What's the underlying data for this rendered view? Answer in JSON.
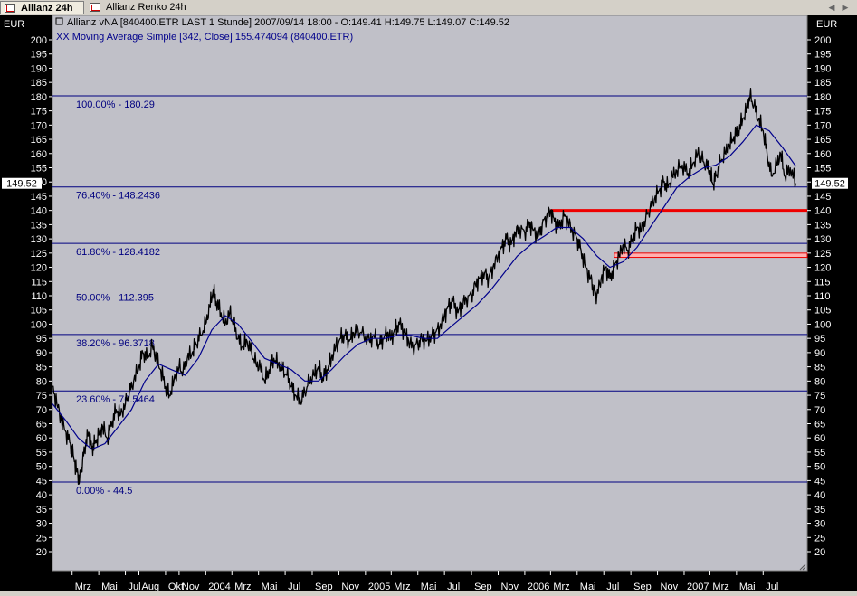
{
  "tabs": [
    {
      "label": "Allianz 24h",
      "active": true
    },
    {
      "label": "Allianz Renko 24h",
      "active": false
    }
  ],
  "icons": {
    "tab": "chart-icon",
    "scroll_left": "arrow-left-icon",
    "scroll_right": "arrow-right-icon"
  },
  "header": {
    "line1": "Allianz vNA [840400.ETR LAST 1 Stunde] 2007/09/14 18:00 - O:149.41 H:149.75 L:149.07 C:149.52",
    "line2": "XX Moving Average Simple [342, Close] 155.474094 (840400.ETR)"
  },
  "currency_left": "EUR",
  "currency_right": "EUR",
  "last_price_label": "149.52",
  "colors": {
    "plot_bg": "#c0c0c8",
    "price": "#000000",
    "moving_average": "#00008b",
    "fib_lines": "#000080",
    "resistance": "#ee0000",
    "support_zone": "#ffb0b0"
  },
  "chart_data": {
    "type": "line",
    "ylim": [
      20,
      200
    ],
    "y_ticks": [
      20,
      25,
      30,
      35,
      40,
      45,
      50,
      55,
      60,
      65,
      70,
      75,
      80,
      85,
      90,
      95,
      100,
      105,
      110,
      115,
      120,
      125,
      130,
      135,
      140,
      145,
      150,
      155,
      160,
      165,
      170,
      175,
      180,
      185,
      190,
      195,
      200
    ],
    "x_tick_labels": [
      {
        "label": "Mrz",
        "date": "2003-03-01"
      },
      {
        "label": "Mai",
        "date": "2003-05-01"
      },
      {
        "label": "Jul",
        "date": "2003-07-01"
      },
      {
        "label": "Aug",
        "date": "2003-08-01"
      },
      {
        "label": "Okt",
        "date": "2003-10-01"
      },
      {
        "label": "Nov",
        "date": "2003-11-01"
      },
      {
        "label": "2004",
        "date": "2004-01-01"
      },
      {
        "label": "Mrz",
        "date": "2004-03-01"
      },
      {
        "label": "Mai",
        "date": "2004-05-01"
      },
      {
        "label": "Jul",
        "date": "2004-07-01"
      },
      {
        "label": "Sep",
        "date": "2004-09-01"
      },
      {
        "label": "Nov",
        "date": "2004-11-01"
      },
      {
        "label": "2005",
        "date": "2005-01-01"
      },
      {
        "label": "Mrz",
        "date": "2005-03-01"
      },
      {
        "label": "Mai",
        "date": "2005-05-01"
      },
      {
        "label": "Jul",
        "date": "2005-07-01"
      },
      {
        "label": "Sep",
        "date": "2005-09-01"
      },
      {
        "label": "Nov",
        "date": "2005-11-01"
      },
      {
        "label": "2006",
        "date": "2006-01-01"
      },
      {
        "label": "Mrz",
        "date": "2006-03-01"
      },
      {
        "label": "Mai",
        "date": "2006-05-01"
      },
      {
        "label": "Jul",
        "date": "2006-07-01"
      },
      {
        "label": "Sep",
        "date": "2006-09-01"
      },
      {
        "label": "Nov",
        "date": "2006-11-01"
      },
      {
        "label": "2007",
        "date": "2007-01-01"
      },
      {
        "label": "Mrz",
        "date": "2007-03-01"
      },
      {
        "label": "Mai",
        "date": "2007-05-01"
      },
      {
        "label": "Jul",
        "date": "2007-07-01"
      }
    ],
    "x_range": [
      "2003-01-15",
      "2007-10-10"
    ],
    "fib_levels": [
      {
        "label": "100.00% - 180.29",
        "value": 180.29
      },
      {
        "label": "76.40% - 148.2436",
        "value": 148.2436
      },
      {
        "label": "61.80% - 128.4182",
        "value": 128.4182
      },
      {
        "label": "50.00% - 112.395",
        "value": 112.395
      },
      {
        "label": "38.20% - 96.3718",
        "value": 96.3718
      },
      {
        "label": "23.60% - 76.5464",
        "value": 76.5464
      },
      {
        "label": "0.00% - 44.5",
        "value": 44.5
      }
    ],
    "resistance_line": {
      "value": 140,
      "from": "2006-03-01"
    },
    "support_zone": {
      "low": 123.5,
      "high": 125,
      "from": "2006-07-25"
    },
    "series": [
      {
        "name": "Allianz vNA",
        "points": [
          [
            "2003-01-15",
            78
          ],
          [
            "2003-01-25",
            72
          ],
          [
            "2003-02-05",
            66
          ],
          [
            "2003-02-15",
            62
          ],
          [
            "2003-02-25",
            58
          ],
          [
            "2003-03-05",
            53
          ],
          [
            "2003-03-12",
            48
          ],
          [
            "2003-03-18",
            45
          ],
          [
            "2003-03-25",
            52
          ],
          [
            "2003-04-01",
            58
          ],
          [
            "2003-04-08",
            62
          ],
          [
            "2003-04-15",
            56
          ],
          [
            "2003-04-22",
            58
          ],
          [
            "2003-05-01",
            61
          ],
          [
            "2003-05-10",
            64
          ],
          [
            "2003-05-20",
            60
          ],
          [
            "2003-06-01",
            66
          ],
          [
            "2003-06-10",
            70
          ],
          [
            "2003-06-20",
            68
          ],
          [
            "2003-07-01",
            72
          ],
          [
            "2003-07-10",
            76
          ],
          [
            "2003-07-20",
            80
          ],
          [
            "2003-08-01",
            85
          ],
          [
            "2003-08-10",
            90
          ],
          [
            "2003-08-20",
            88
          ],
          [
            "2003-09-01",
            92
          ],
          [
            "2003-09-10",
            88
          ],
          [
            "2003-09-20",
            84
          ],
          [
            "2003-10-01",
            78
          ],
          [
            "2003-10-10",
            75
          ],
          [
            "2003-10-20",
            80
          ],
          [
            "2003-11-01",
            85
          ],
          [
            "2003-11-10",
            83
          ],
          [
            "2003-11-20",
            88
          ],
          [
            "2003-12-01",
            90
          ],
          [
            "2003-12-10",
            93
          ],
          [
            "2003-12-20",
            96
          ],
          [
            "2004-01-01",
            100
          ],
          [
            "2004-01-10",
            106
          ],
          [
            "2004-01-18",
            112
          ],
          [
            "2004-01-25",
            108
          ],
          [
            "2004-02-05",
            104
          ],
          [
            "2004-02-15",
            100
          ],
          [
            "2004-02-25",
            104
          ],
          [
            "2004-03-05",
            100
          ],
          [
            "2004-03-15",
            95
          ],
          [
            "2004-03-25",
            92
          ],
          [
            "2004-04-05",
            94
          ],
          [
            "2004-04-15",
            90
          ],
          [
            "2004-04-25",
            86
          ],
          [
            "2004-05-05",
            85
          ],
          [
            "2004-05-15",
            80
          ],
          [
            "2004-05-25",
            84
          ],
          [
            "2004-06-05",
            88
          ],
          [
            "2004-06-15",
            86
          ],
          [
            "2004-06-25",
            84
          ],
          [
            "2004-07-05",
            82
          ],
          [
            "2004-07-15",
            78
          ],
          [
            "2004-07-25",
            75
          ],
          [
            "2004-08-05",
            73
          ],
          [
            "2004-08-15",
            76
          ],
          [
            "2004-08-25",
            80
          ],
          [
            "2004-09-05",
            82
          ],
          [
            "2004-09-15",
            85
          ],
          [
            "2004-09-25",
            81
          ],
          [
            "2004-10-05",
            84
          ],
          [
            "2004-10-15",
            88
          ],
          [
            "2004-10-25",
            92
          ],
          [
            "2004-11-05",
            95
          ],
          [
            "2004-11-15",
            96
          ],
          [
            "2004-11-25",
            94
          ],
          [
            "2004-12-05",
            97
          ],
          [
            "2004-12-15",
            98
          ],
          [
            "2004-12-28",
            96
          ],
          [
            "2005-01-10",
            94
          ],
          [
            "2005-01-20",
            96
          ],
          [
            "2005-02-01",
            93
          ],
          [
            "2005-02-10",
            95
          ],
          [
            "2005-02-20",
            97
          ],
          [
            "2005-03-01",
            95
          ],
          [
            "2005-03-10",
            98
          ],
          [
            "2005-03-20",
            100
          ],
          [
            "2005-04-01",
            97
          ],
          [
            "2005-04-10",
            94
          ],
          [
            "2005-04-20",
            92
          ],
          [
            "2005-05-01",
            93
          ],
          [
            "2005-05-10",
            95
          ],
          [
            "2005-05-20",
            94
          ],
          [
            "2005-06-01",
            96
          ],
          [
            "2005-06-10",
            97
          ],
          [
            "2005-06-20",
            99
          ],
          [
            "2005-07-01",
            103
          ],
          [
            "2005-07-10",
            106
          ],
          [
            "2005-07-20",
            108
          ],
          [
            "2005-08-01",
            104
          ],
          [
            "2005-08-10",
            107
          ],
          [
            "2005-08-20",
            109
          ],
          [
            "2005-09-01",
            110
          ],
          [
            "2005-09-10",
            114
          ],
          [
            "2005-09-20",
            116
          ],
          [
            "2005-10-01",
            118
          ],
          [
            "2005-10-10",
            116
          ],
          [
            "2005-10-20",
            120
          ],
          [
            "2005-11-01",
            124
          ],
          [
            "2005-11-10",
            127
          ],
          [
            "2005-11-20",
            130
          ],
          [
            "2005-12-01",
            128
          ],
          [
            "2005-12-10",
            132
          ],
          [
            "2005-12-20",
            134
          ],
          [
            "2006-01-01",
            132
          ],
          [
            "2006-01-10",
            136
          ],
          [
            "2006-01-20",
            133
          ],
          [
            "2006-02-01",
            131
          ],
          [
            "2006-02-10",
            135
          ],
          [
            "2006-02-20",
            138
          ],
          [
            "2006-03-01",
            140
          ],
          [
            "2006-03-10",
            136
          ],
          [
            "2006-03-20",
            134
          ],
          [
            "2006-04-01",
            138
          ],
          [
            "2006-04-10",
            136
          ],
          [
            "2006-04-20",
            133
          ],
          [
            "2006-05-01",
            130
          ],
          [
            "2006-05-10",
            126
          ],
          [
            "2006-05-20",
            120
          ],
          [
            "2006-06-01",
            116
          ],
          [
            "2006-06-08",
            112
          ],
          [
            "2006-06-15",
            110
          ],
          [
            "2006-06-25",
            116
          ],
          [
            "2006-07-05",
            120
          ],
          [
            "2006-07-15",
            116
          ],
          [
            "2006-07-25",
            120
          ],
          [
            "2006-08-05",
            124
          ],
          [
            "2006-08-15",
            128
          ],
          [
            "2006-08-25",
            126
          ],
          [
            "2006-09-05",
            130
          ],
          [
            "2006-09-15",
            134
          ],
          [
            "2006-09-25",
            133
          ],
          [
            "2006-10-05",
            137
          ],
          [
            "2006-10-15",
            141
          ],
          [
            "2006-10-25",
            144
          ],
          [
            "2006-11-05",
            147
          ],
          [
            "2006-11-15",
            150
          ],
          [
            "2006-11-25",
            148
          ],
          [
            "2006-12-05",
            152
          ],
          [
            "2006-12-15",
            154
          ],
          [
            "2006-12-28",
            156
          ],
          [
            "2007-01-10",
            153
          ],
          [
            "2007-01-20",
            156
          ],
          [
            "2007-02-01",
            160
          ],
          [
            "2007-02-10",
            158
          ],
          [
            "2007-02-20",
            156
          ],
          [
            "2007-03-01",
            154
          ],
          [
            "2007-03-08",
            149
          ],
          [
            "2007-03-15",
            152
          ],
          [
            "2007-03-25",
            157
          ],
          [
            "2007-04-05",
            160
          ],
          [
            "2007-04-15",
            163
          ],
          [
            "2007-04-25",
            166
          ],
          [
            "2007-05-05",
            168
          ],
          [
            "2007-05-15",
            172
          ],
          [
            "2007-05-25",
            176
          ],
          [
            "2007-06-01",
            180
          ],
          [
            "2007-06-10",
            177
          ],
          [
            "2007-06-20",
            172
          ],
          [
            "2007-07-01",
            168
          ],
          [
            "2007-07-10",
            160
          ],
          [
            "2007-07-20",
            152
          ],
          [
            "2007-08-01",
            156
          ],
          [
            "2007-08-10",
            160
          ],
          [
            "2007-08-20",
            152
          ],
          [
            "2007-09-01",
            155
          ],
          [
            "2007-09-14",
            149.52
          ]
        ]
      },
      {
        "name": "Moving Average Simple [342, Close]",
        "points": [
          [
            "2003-01-15",
            72
          ],
          [
            "2003-02-15",
            66
          ],
          [
            "2003-03-15",
            60
          ],
          [
            "2003-04-15",
            56
          ],
          [
            "2003-05-15",
            58
          ],
          [
            "2003-06-15",
            64
          ],
          [
            "2003-07-15",
            70
          ],
          [
            "2003-08-15",
            80
          ],
          [
            "2003-09-15",
            86
          ],
          [
            "2003-10-15",
            84
          ],
          [
            "2003-11-15",
            82
          ],
          [
            "2003-12-15",
            88
          ],
          [
            "2004-01-15",
            98
          ],
          [
            "2004-02-15",
            103
          ],
          [
            "2004-03-15",
            100
          ],
          [
            "2004-04-15",
            94
          ],
          [
            "2004-05-15",
            88
          ],
          [
            "2004-06-15",
            86
          ],
          [
            "2004-07-15",
            84
          ],
          [
            "2004-08-15",
            80
          ],
          [
            "2004-09-15",
            80
          ],
          [
            "2004-10-15",
            84
          ],
          [
            "2004-11-15",
            89
          ],
          [
            "2004-12-15",
            93
          ],
          [
            "2005-01-15",
            95
          ],
          [
            "2005-02-15",
            95
          ],
          [
            "2005-03-15",
            96
          ],
          [
            "2005-04-15",
            96
          ],
          [
            "2005-05-15",
            95
          ],
          [
            "2005-06-15",
            95
          ],
          [
            "2005-07-15",
            99
          ],
          [
            "2005-08-15",
            103
          ],
          [
            "2005-09-15",
            107
          ],
          [
            "2005-10-15",
            112
          ],
          [
            "2005-11-15",
            118
          ],
          [
            "2005-12-15",
            124
          ],
          [
            "2006-01-15",
            128
          ],
          [
            "2006-02-15",
            131
          ],
          [
            "2006-03-15",
            134
          ],
          [
            "2006-04-15",
            134
          ],
          [
            "2006-05-15",
            130
          ],
          [
            "2006-06-15",
            124
          ],
          [
            "2006-07-15",
            120
          ],
          [
            "2006-08-15",
            122
          ],
          [
            "2006-09-15",
            127
          ],
          [
            "2006-10-15",
            134
          ],
          [
            "2006-11-15",
            141
          ],
          [
            "2006-12-15",
            148
          ],
          [
            "2007-01-15",
            152
          ],
          [
            "2007-02-15",
            155
          ],
          [
            "2007-03-15",
            156
          ],
          [
            "2007-04-15",
            159
          ],
          [
            "2007-05-15",
            164
          ],
          [
            "2007-06-15",
            170
          ],
          [
            "2007-07-15",
            168
          ],
          [
            "2007-08-15",
            162
          ],
          [
            "2007-09-14",
            155.47
          ]
        ]
      }
    ]
  }
}
